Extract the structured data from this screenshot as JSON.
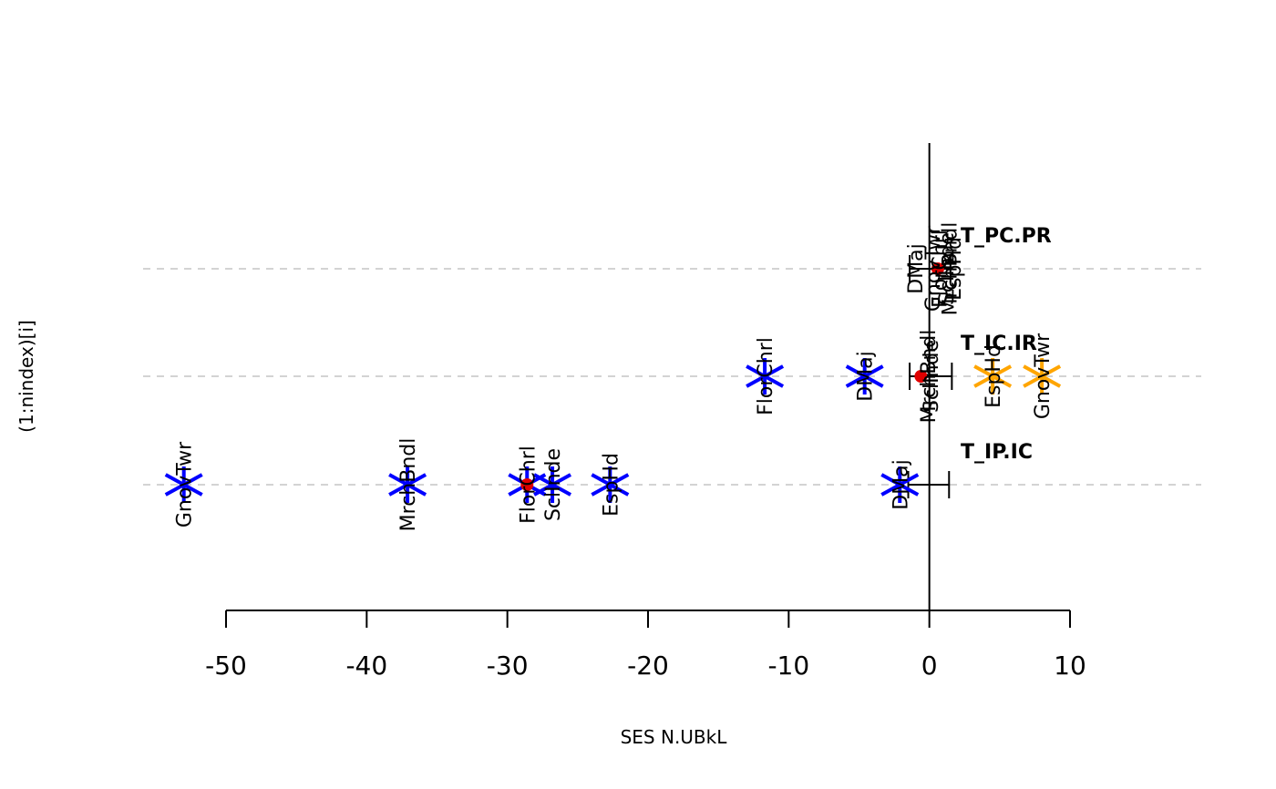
{
  "chart_data": {
    "type": "scatter",
    "title": "",
    "xlabel": "SES N.UBkL",
    "ylabel": "(1:nindex)[i]",
    "xlim": [
      -55,
      19
    ],
    "x_ticks": [
      -50,
      -40,
      -30,
      -20,
      -10,
      0,
      10
    ],
    "x_tick_labels": [
      "-50",
      "-40",
      "-30",
      "-20",
      "-10",
      "0",
      "10"
    ],
    "grid": "horizontal dashed at each index",
    "colors": {
      "negative_marker": "#0000ff",
      "positive_marker": "#ffa500",
      "mean_point": "#e00000",
      "grid": "#d3d3d3",
      "axis": "#000000"
    },
    "rows": [
      {
        "index": 1,
        "label": "T_IP.IC",
        "mean": -28.6,
        "ci": [
          -1.5,
          1.4
        ],
        "points": [
          {
            "name": "GnovTwr",
            "x": -53.0,
            "sign": "negative"
          },
          {
            "name": "MrchBndl",
            "x": -37.1,
            "sign": "negative"
          },
          {
            "name": "FlorChrl",
            "x": -28.6,
            "sign": "negative"
          },
          {
            "name": "SclInde",
            "x": -26.8,
            "sign": "negative"
          },
          {
            "name": "EspHd",
            "x": -22.7,
            "sign": "negative"
          },
          {
            "name": "DMaj",
            "x": -2.1,
            "sign": "negative"
          }
        ]
      },
      {
        "index": 2,
        "label": "T_IC.IR",
        "mean": -0.6,
        "ci": [
          -1.4,
          1.6
        ],
        "points": [
          {
            "name": "FlorChrl",
            "x": -11.7,
            "sign": "negative"
          },
          {
            "name": "DMaj",
            "x": -4.6,
            "sign": "negative"
          },
          {
            "name": "MrchBndl",
            "x": -0.1,
            "sign": "none"
          },
          {
            "name": "SclInde",
            "x": 0.1,
            "sign": "none"
          },
          {
            "name": "EspHd",
            "x": 4.5,
            "sign": "positive"
          },
          {
            "name": "GnovTwr",
            "x": 8.0,
            "sign": "positive"
          }
        ]
      },
      {
        "index": 3,
        "label": "T_PC.PR",
        "mean": 0.6,
        "ci": [
          -1.4,
          1.5
        ],
        "points": [
          {
            "name": "DMaj",
            "x": -1.0,
            "sign": "none"
          },
          {
            "name": "GnovTwr",
            "x": 0.2,
            "sign": "none"
          },
          {
            "name": "FlorChrl",
            "x": 0.7,
            "sign": "none"
          },
          {
            "name": "SclInde",
            "x": 1.2,
            "sign": "none"
          },
          {
            "name": "MrchBndl",
            "x": 1.4,
            "sign": "none"
          },
          {
            "name": "EspHd",
            "x": 1.7,
            "sign": "none"
          }
        ]
      }
    ]
  }
}
